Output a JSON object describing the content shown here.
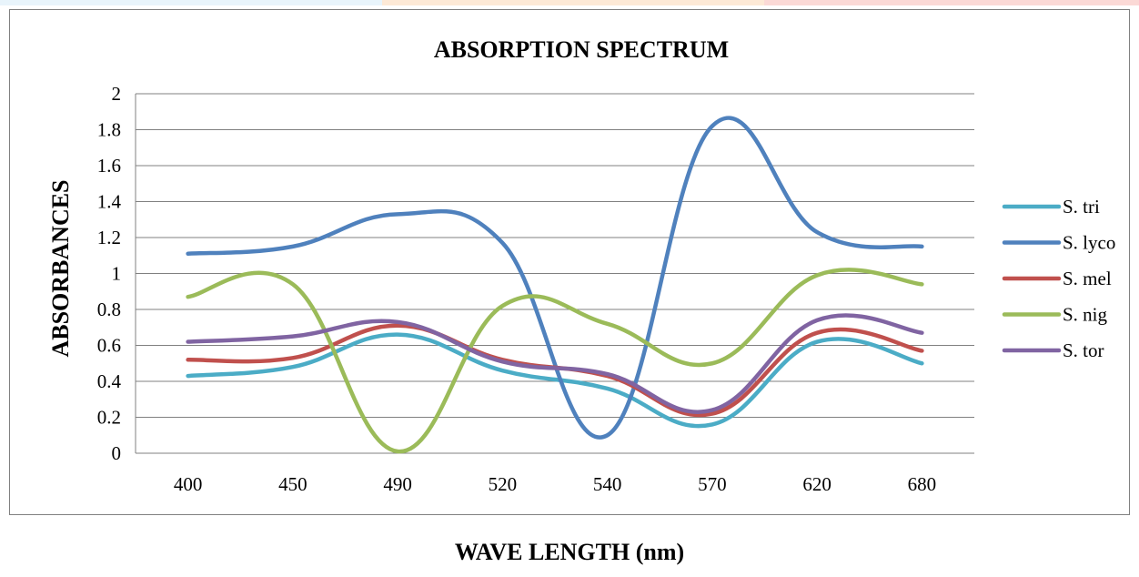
{
  "chart_data": {
    "type": "line",
    "title": "ABSORPTION SPECTRUM",
    "xlabel": "WAVE LENGTH (nm)",
    "ylabel": "ABSORBANCES",
    "categories": [
      "400",
      "450",
      "490",
      "520",
      "540",
      "570",
      "620",
      "680"
    ],
    "ylim": [
      0,
      2
    ],
    "yticks": [
      "0",
      "0.2",
      "0.4",
      "0.6",
      "0.8",
      "1",
      "1.2",
      "1.4",
      "1.6",
      "1.8",
      "2"
    ],
    "grid": true,
    "smooth": true,
    "legend_position": "right",
    "series": [
      {
        "name": "S. tri",
        "color": "#4BACC6",
        "values": [
          0.43,
          0.48,
          0.66,
          0.46,
          0.36,
          0.16,
          0.62,
          0.5
        ]
      },
      {
        "name": "S. lyco",
        "color": "#4F81BD",
        "values": [
          1.11,
          1.15,
          1.33,
          1.17,
          0.1,
          1.82,
          1.23,
          1.15
        ]
      },
      {
        "name": "S. mel",
        "color": "#C0504D",
        "values": [
          0.52,
          0.53,
          0.71,
          0.52,
          0.43,
          0.22,
          0.67,
          0.57
        ]
      },
      {
        "name": "S. nig",
        "color": "#9BBB59",
        "values": [
          0.87,
          0.94,
          0.01,
          0.82,
          0.72,
          0.5,
          0.99,
          0.94
        ]
      },
      {
        "name": "S. tor",
        "color": "#8064A2",
        "values": [
          0.62,
          0.65,
          0.73,
          0.51,
          0.44,
          0.24,
          0.74,
          0.67
        ]
      }
    ]
  },
  "stripe_colors": [
    "#e8f4fb",
    "#fde9d6",
    "#fbd9d6"
  ]
}
